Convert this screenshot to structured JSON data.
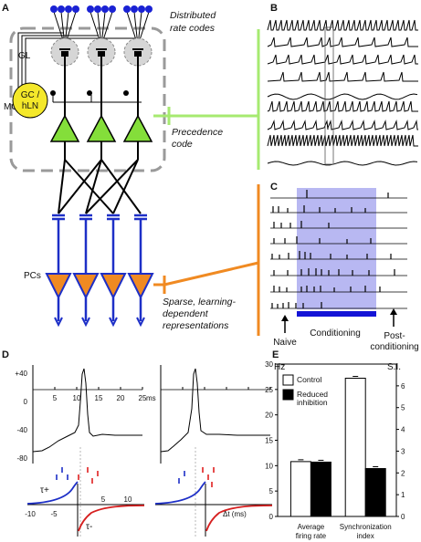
{
  "panels": {
    "a": "A",
    "b": "B",
    "c": "C",
    "d": "D",
    "e": "E"
  },
  "panel_a": {
    "distributed_line1": "Distributed",
    "distributed_line2": "rate codes",
    "gl_label": "GL",
    "gc_line1": "GC /",
    "gc_line2": "hLN",
    "mc_label": "MC/PNs",
    "precedence_line1": "Precedence",
    "precedence_line2": "code",
    "pc_label": "PCs",
    "sparse_line1": "Sparse, learning-",
    "sparse_line2": "dependent",
    "sparse_line3": "representations",
    "colors": {
      "receptor": "#1a22d4",
      "glomerulus_fill": "#d6d6d6",
      "gc_fill": "#f4e82a",
      "mc_fill": "#84de3a",
      "pc_fill": "#f08a22",
      "axon_blue": "#1d2fc7",
      "green_bracket": "#a6ea70",
      "orange_bracket": "#f08a22"
    }
  },
  "panel_c": {
    "naive": "Naive",
    "conditioning": "Conditioning",
    "post_line1": "Post-",
    "post_line2": "conditioning",
    "shade_color": "#b8b8f2",
    "bar_color": "#1414d6"
  },
  "panel_d": {
    "yticks": [
      "+40",
      "0",
      "-40",
      "-80"
    ],
    "xticks": [
      "5",
      "10",
      "15",
      "20",
      "25"
    ],
    "xunit": "ms",
    "stdp_xticks": [
      "-10",
      "-5",
      "5",
      "10"
    ],
    "tau_plus": "τ+",
    "tau_minus": "τ-",
    "dt_label": "Δt (ms)"
  },
  "chart_data": {
    "type": "bar",
    "categories": [
      "Average firing rate",
      "Synchronization index"
    ],
    "category_lines": [
      [
        "Average",
        "firing rate"
      ],
      [
        "Synchronization",
        "index"
      ]
    ],
    "series": [
      {
        "name": "Control",
        "values": [
          10.8,
          6.35
        ],
        "color": "#ffffff"
      },
      {
        "name": "Reduced inhibition",
        "values": [
          10.7,
          2.2
        ],
        "color": "#000000"
      }
    ],
    "legend_lines": [
      [
        "Control"
      ],
      [
        "Reduced",
        "inhibition"
      ]
    ],
    "left_axis": {
      "label": "Hz",
      "range": [
        0,
        30
      ],
      "ticks": [
        0,
        5,
        10,
        15,
        20,
        25,
        30
      ]
    },
    "right_axis": {
      "label": "S.I.",
      "range": [
        0,
        7
      ],
      "ticks": [
        0,
        1,
        2,
        3,
        4,
        5,
        6
      ]
    },
    "category_axis": [
      "left",
      "right"
    ],
    "legend_position": "top-left"
  }
}
